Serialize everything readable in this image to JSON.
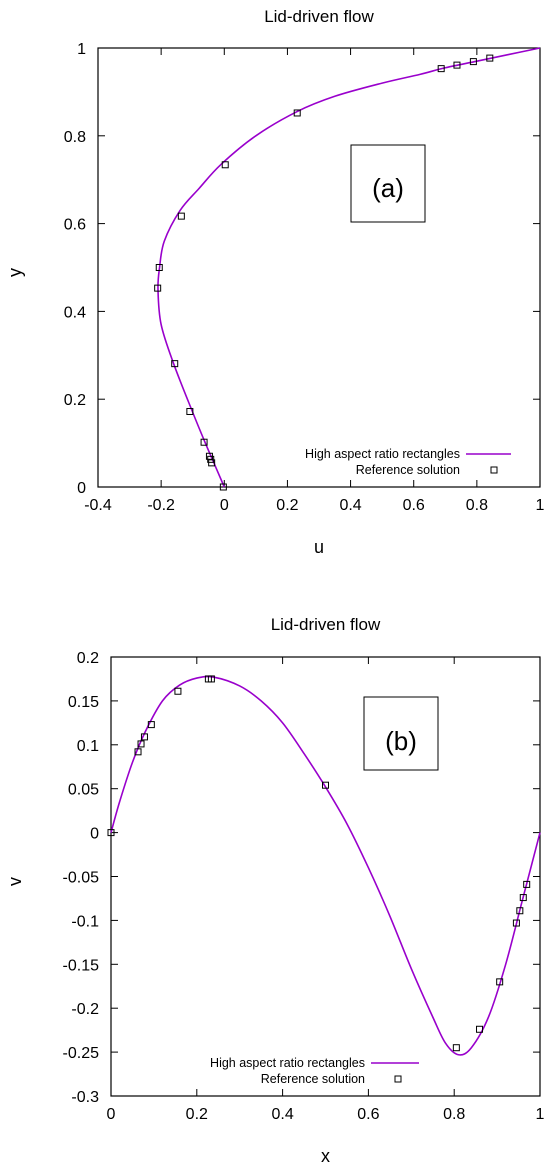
{
  "chart_data": [
    {
      "type": "line",
      "panel": "(a)",
      "title": "Lid-driven flow",
      "xlabel": "u",
      "ylabel": "y",
      "xlim": [
        -0.4,
        1
      ],
      "ylim": [
        0,
        1
      ],
      "xticks": [
        -0.4,
        -0.2,
        0,
        0.2,
        0.4,
        0.6,
        0.8,
        1
      ],
      "xtick_labels": [
        "-0.4",
        "-0.2",
        "0",
        "0.2",
        "0.4",
        "0.6",
        "0.8",
        "1"
      ],
      "yticks": [
        0,
        0.2,
        0.4,
        0.6,
        0.8,
        1
      ],
      "ytick_labels": [
        "0",
        "0.2",
        "0.4",
        "0.6",
        "0.8",
        "1"
      ],
      "grid": false,
      "legend_position": "bottom-right",
      "series": [
        {
          "name": "High aspect ratio rectangles",
          "kind": "line",
          "color": "#9900cc",
          "points": [
            [
              0,
              0
            ],
            [
              -0.03,
              0.05
            ],
            [
              -0.06,
              0.1
            ],
            [
              -0.1,
              0.17
            ],
            [
              -0.16,
              0.28
            ],
            [
              -0.2,
              0.37
            ],
            [
              -0.21,
              0.45
            ],
            [
              -0.205,
              0.5
            ],
            [
              -0.19,
              0.56
            ],
            [
              -0.14,
              0.63
            ],
            [
              -0.08,
              0.68
            ],
            [
              -0.01,
              0.735
            ],
            [
              0.1,
              0.8
            ],
            [
              0.23,
              0.855
            ],
            [
              0.35,
              0.89
            ],
            [
              0.5,
              0.92
            ],
            [
              0.62,
              0.94
            ],
            [
              0.7,
              0.955
            ],
            [
              0.8,
              0.97
            ],
            [
              0.9,
              0.985
            ],
            [
              1,
              1
            ]
          ]
        },
        {
          "name": "Reference solution",
          "kind": "marker",
          "marker": "square",
          "points": [
            [
              -0.003,
              0
            ],
            [
              -0.04,
              0.055
            ],
            [
              -0.043,
              0.063
            ],
            [
              -0.047,
              0.07
            ],
            [
              -0.064,
              0.102
            ],
            [
              -0.109,
              0.172
            ],
            [
              -0.157,
              0.281
            ],
            [
              -0.211,
              0.453
            ],
            [
              -0.206,
              0.5
            ],
            [
              -0.136,
              0.617
            ],
            [
              0.003,
              0.734
            ],
            [
              0.231,
              0.852
            ],
            [
              0.687,
              0.953
            ],
            [
              0.737,
              0.961
            ],
            [
              0.789,
              0.969
            ],
            [
              0.841,
              0.977
            ]
          ]
        }
      ]
    },
    {
      "type": "line",
      "panel": "(b)",
      "title": "Lid-driven flow",
      "xlabel": "x",
      "ylabel": "v",
      "xlim": [
        0,
        1
      ],
      "ylim": [
        -0.3,
        0.2
      ],
      "xticks": [
        0,
        0.2,
        0.4,
        0.6,
        0.8,
        1
      ],
      "xtick_labels": [
        "0",
        "0.2",
        "0.4",
        "0.6",
        "0.8",
        "1"
      ],
      "yticks": [
        -0.3,
        -0.25,
        -0.2,
        -0.15,
        -0.1,
        -0.05,
        0,
        0.05,
        0.1,
        0.15,
        0.2
      ],
      "ytick_labels": [
        "-0.3",
        "-0.25",
        "-0.2",
        "-0.15",
        "-0.1",
        "-0.05",
        "0",
        "0.05",
        "0.1",
        "0.15",
        "0.2"
      ],
      "grid": false,
      "legend_position": "bottom-right",
      "series": [
        {
          "name": "High aspect ratio rectangles",
          "kind": "line",
          "color": "#9900cc",
          "points": [
            [
              0,
              0
            ],
            [
              0.02,
              0.035
            ],
            [
              0.05,
              0.08
            ],
            [
              0.08,
              0.115
            ],
            [
              0.12,
              0.15
            ],
            [
              0.16,
              0.168
            ],
            [
              0.2,
              0.176
            ],
            [
              0.24,
              0.177
            ],
            [
              0.3,
              0.167
            ],
            [
              0.35,
              0.15
            ],
            [
              0.4,
              0.125
            ],
            [
              0.45,
              0.09
            ],
            [
              0.5,
              0.052
            ],
            [
              0.55,
              0.01
            ],
            [
              0.6,
              -0.04
            ],
            [
              0.65,
              -0.095
            ],
            [
              0.7,
              -0.155
            ],
            [
              0.75,
              -0.21
            ],
            [
              0.78,
              -0.24
            ],
            [
              0.81,
              -0.253
            ],
            [
              0.84,
              -0.245
            ],
            [
              0.88,
              -0.21
            ],
            [
              0.92,
              -0.15
            ],
            [
              0.96,
              -0.075
            ],
            [
              1,
              0
            ]
          ]
        },
        {
          "name": "Reference solution",
          "kind": "marker",
          "marker": "square",
          "points": [
            [
              0.0,
              0.0
            ],
            [
              0.063,
              0.092
            ],
            [
              0.07,
              0.101
            ],
            [
              0.078,
              0.109
            ],
            [
              0.094,
              0.123
            ],
            [
              0.156,
              0.161
            ],
            [
              0.227,
              0.175
            ],
            [
              0.234,
              0.175
            ],
            [
              0.5,
              0.054
            ],
            [
              0.805,
              -0.245
            ],
            [
              0.859,
              -0.224
            ],
            [
              0.906,
              -0.17
            ],
            [
              0.945,
              -0.103
            ],
            [
              0.953,
              -0.089
            ],
            [
              0.961,
              -0.074
            ],
            [
              0.969,
              -0.059
            ]
          ]
        }
      ]
    }
  ]
}
